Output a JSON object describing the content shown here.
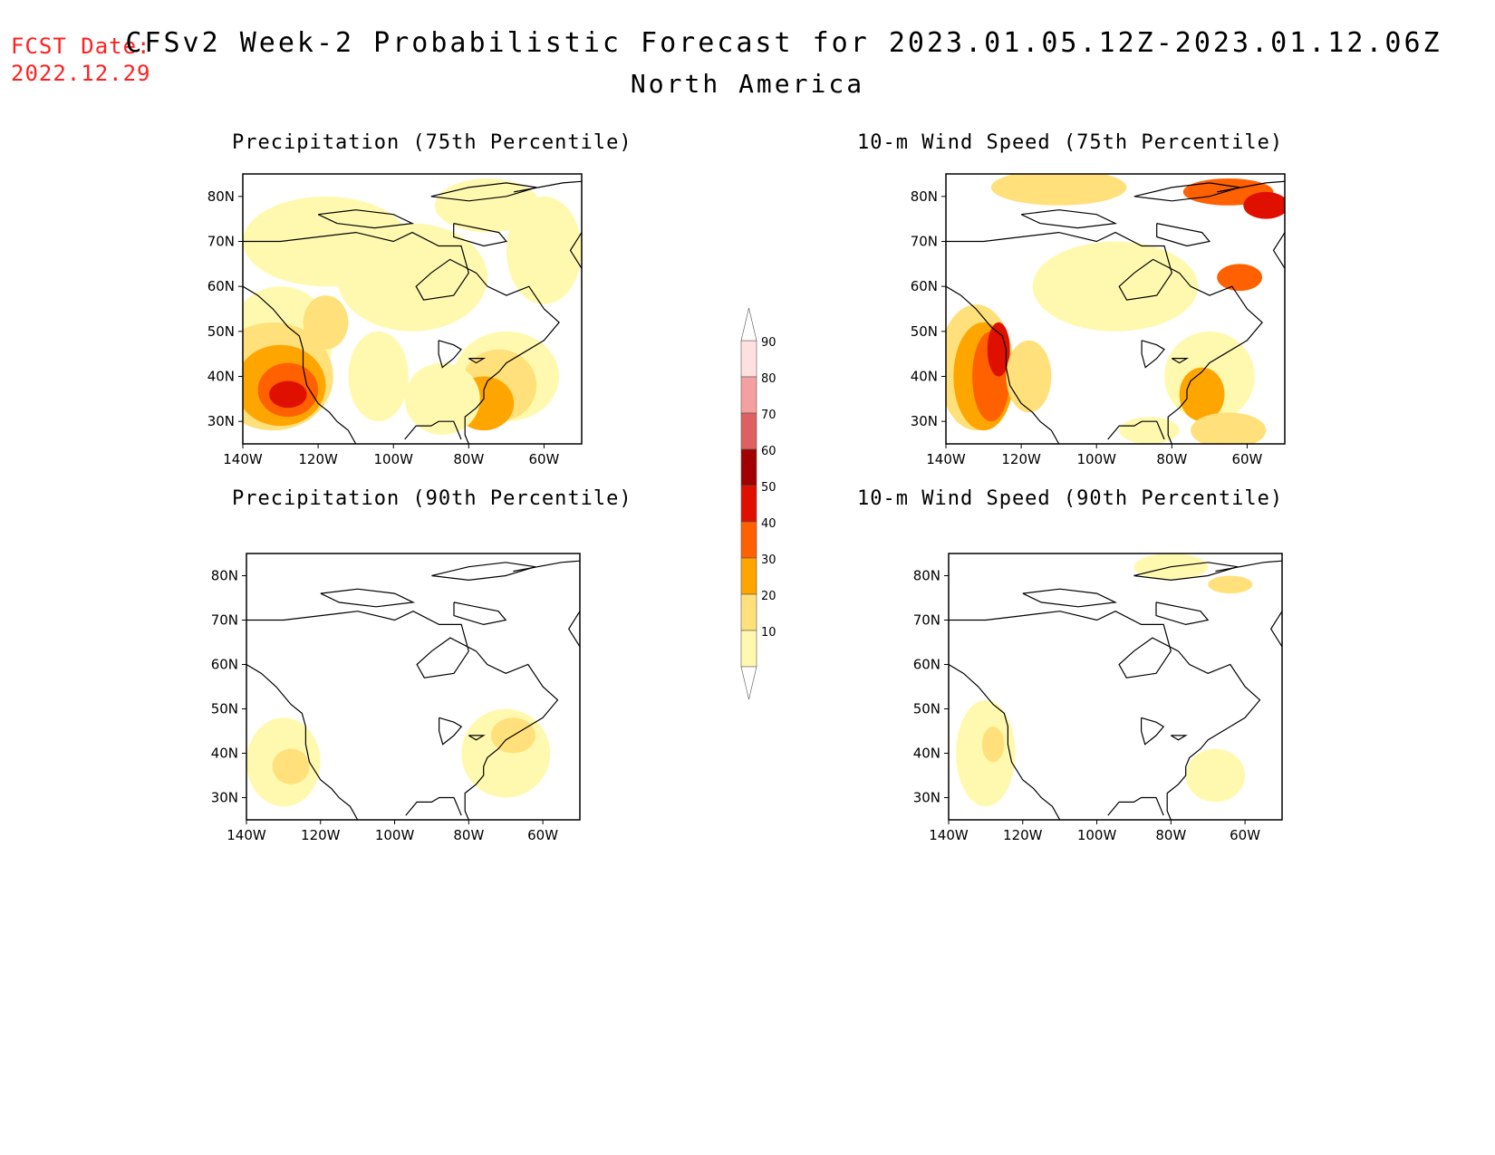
{
  "header": {
    "fcst_label": "FCST Date:",
    "fcst_date": "2022.12.29",
    "title": "CFSv2 Week-2 Probabilistic Forecast for 2023.01.05.12Z-2023.01.12.06Z",
    "region": "North America"
  },
  "panels": [
    {
      "id": "precip75",
      "title": "Precipitation (75th Percentile)"
    },
    {
      "id": "wind75",
      "title": "10-m Wind Speed (75th Percentile)"
    },
    {
      "id": "precip90",
      "title": "Precipitation (90th Percentile)"
    },
    {
      "id": "wind90",
      "title": "10-m Wind Speed (90th Percentile)"
    }
  ],
  "axes": {
    "lat_labels": [
      "80N",
      "70N",
      "60N",
      "50N",
      "40N",
      "30N"
    ],
    "lat_values": [
      80,
      70,
      60,
      50,
      40,
      30
    ],
    "lon_labels": [
      "140W",
      "120W",
      "100W",
      "80W",
      "60W"
    ],
    "lon_values": [
      -140,
      -120,
      -100,
      -80,
      -60
    ],
    "lon_range": [
      -140,
      -50
    ],
    "lat_range": [
      25,
      85
    ]
  },
  "colorbar": {
    "levels": [
      "10",
      "20",
      "30",
      "40",
      "50",
      "60",
      "70",
      "80",
      "90"
    ],
    "colors": [
      "#fff9b0",
      "#ffe07a",
      "#ffa500",
      "#ff6000",
      "#e01000",
      "#a00000",
      "#de6060",
      "#f5a0a0",
      "#ffe0e0"
    ]
  },
  "colors": {
    "fcst_text": "#ff2020",
    "coast": "#000000"
  }
}
